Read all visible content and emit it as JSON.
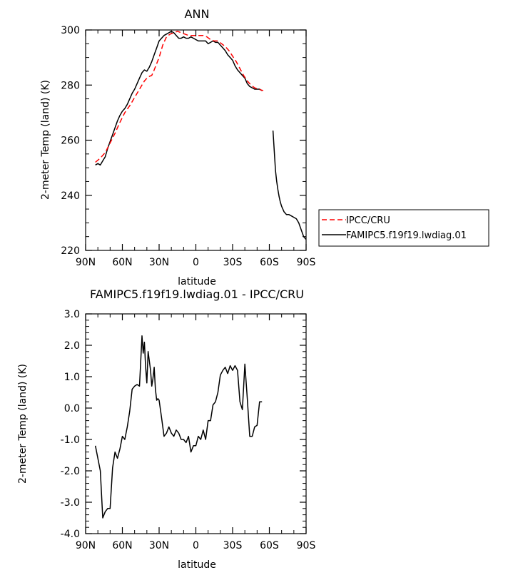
{
  "chart_data": [
    {
      "type": "line",
      "title": "ANN",
      "xlabel": "latitude",
      "ylabel": "2-meter Temp (land) (K)",
      "xlim": [
        90,
        -90
      ],
      "ylim": [
        220,
        300
      ],
      "x_ticks": [
        90,
        60,
        30,
        0,
        -30,
        -60,
        -90
      ],
      "x_tick_labels": [
        "90N",
        "60N",
        "30N",
        "0",
        "30S",
        "60S",
        "90S"
      ],
      "y_ticks": [
        220,
        240,
        260,
        280,
        300
      ],
      "y_tick_labels": [
        "220",
        "240",
        "260",
        "280",
        "300"
      ],
      "legend_position": "right",
      "series": [
        {
          "name": "IPCC/CRU",
          "color": "#ff0000",
          "dash": "dashed",
          "x": [
            82,
            78,
            74,
            70,
            66,
            62,
            58,
            54,
            50,
            46,
            42,
            39,
            36,
            34,
            30,
            27,
            24,
            21,
            18,
            15,
            12,
            9,
            6,
            3,
            0,
            -3,
            -6,
            -9,
            -12,
            -15,
            -18,
            -21,
            -24,
            -27,
            -30,
            -33,
            -36,
            -39,
            -42,
            -45,
            -48,
            -51,
            -55
          ],
          "y": [
            252,
            253.5,
            255.5,
            259,
            262.5,
            266.5,
            270,
            272.5,
            275.5,
            278.5,
            281.5,
            283,
            283.5,
            285.5,
            290,
            294.5,
            297.5,
            298.5,
            299,
            299.5,
            299,
            298.5,
            298,
            298,
            298,
            298,
            298,
            297.5,
            296.5,
            296,
            296,
            295,
            294,
            292.5,
            290.5,
            288.5,
            286,
            283.5,
            281.5,
            280,
            279,
            278.5,
            278
          ]
        },
        {
          "name": "FAMIPC5.f19f19.lwdiag.01",
          "color": "#000000",
          "dash": "solid",
          "x": [
            82,
            80,
            78,
            76,
            74,
            72,
            70,
            68,
            66,
            64,
            62,
            60,
            58,
            56,
            54,
            52,
            50,
            48,
            46,
            44,
            42,
            40,
            38,
            36,
            34,
            32,
            30,
            28,
            26,
            24,
            22,
            20,
            18,
            16,
            14,
            12,
            10,
            8,
            6,
            4,
            2,
            0,
            -2,
            -4,
            -6,
            -8,
            -10,
            -12,
            -14,
            -16,
            -18,
            -20,
            -22,
            -24,
            -26,
            -28,
            -30,
            -32,
            -34,
            -36,
            -38,
            -40,
            -42,
            -44,
            -46,
            -48,
            -50,
            -52,
            -54
          ],
          "y": [
            251,
            251.5,
            251,
            252.5,
            254,
            257,
            259.5,
            262,
            264.5,
            267,
            269,
            270.5,
            271.5,
            273,
            275,
            277,
            278.5,
            280.5,
            282.5,
            284.5,
            285.5,
            285,
            286.5,
            288.5,
            291,
            293.5,
            296,
            297,
            298,
            298.5,
            299,
            299.5,
            299,
            298,
            297,
            297,
            297.5,
            297,
            297,
            297.5,
            297,
            296.5,
            296,
            296,
            296,
            296,
            295,
            295.5,
            296,
            295.5,
            295.5,
            294.5,
            293.5,
            292.5,
            291,
            290,
            289,
            287,
            285.5,
            284.5,
            283.5,
            282.5,
            280.5,
            279.5,
            279,
            278.5,
            278.5,
            278.5,
            278
          ]
        },
        {
          "name": "",
          "color": "#000000",
          "dash": "solid",
          "x": [
            -63,
            -64,
            -65,
            -66,
            -67,
            -68,
            -69,
            -70,
            -72,
            -74,
            -76,
            -78,
            -80,
            -82,
            -84,
            -86,
            -88,
            -90
          ],
          "y": [
            263.5,
            256,
            249,
            245,
            242,
            239.5,
            237.5,
            236,
            234,
            233,
            233,
            232.5,
            232,
            231.5,
            230,
            227.5,
            225,
            224
          ]
        }
      ]
    },
    {
      "type": "line",
      "title": "FAMIPC5.f19f19.lwdiag.01 - IPCC/CRU",
      "xlabel": "latitude",
      "ylabel": "2-meter Temp (land) (K)",
      "xlim": [
        90,
        -90
      ],
      "ylim": [
        -4.0,
        3.0
      ],
      "x_ticks": [
        90,
        60,
        30,
        0,
        -30,
        -60,
        -90
      ],
      "x_tick_labels": [
        "90N",
        "60N",
        "30N",
        "0",
        "30S",
        "60S",
        "90S"
      ],
      "y_ticks": [
        -4.0,
        -3.0,
        -2.0,
        -1.0,
        0.0,
        1.0,
        2.0,
        3.0
      ],
      "y_tick_labels": [
        "-4.0",
        "-3.0",
        "-2.0",
        "-1.0",
        "0.0",
        "1.0",
        "2.0",
        "3.0"
      ],
      "series": [
        {
          "color": "#000000",
          "dash": "solid",
          "x": [
            82,
            78,
            76,
            74,
            72,
            70,
            68,
            66,
            64,
            62,
            60,
            58,
            56,
            54,
            52,
            50,
            48,
            46,
            44,
            43,
            42,
            41,
            40,
            39,
            38,
            37,
            36,
            35,
            34,
            33,
            32,
            31,
            30,
            28,
            26,
            24,
            22,
            20,
            18,
            16,
            14,
            12,
            10,
            8,
            6,
            4,
            2,
            0,
            -2,
            -4,
            -6,
            -8,
            -10,
            -12,
            -14,
            -16,
            -18,
            -20,
            -22,
            -24,
            -26,
            -28,
            -30,
            -32,
            -34,
            -36,
            -38,
            -40,
            -42,
            -44,
            -46,
            -48,
            -50,
            -52,
            -54
          ],
          "y": [
            -1.2,
            -2.0,
            -3.5,
            -3.3,
            -3.2,
            -3.2,
            -1.9,
            -1.4,
            -1.6,
            -1.3,
            -0.9,
            -1.0,
            -0.6,
            -0.1,
            0.6,
            0.7,
            0.75,
            0.7,
            2.3,
            1.75,
            2.1,
            1.3,
            0.8,
            1.8,
            1.5,
            1.2,
            0.7,
            0.95,
            1.3,
            0.6,
            0.25,
            0.3,
            0.25,
            -0.3,
            -0.9,
            -0.8,
            -0.6,
            -0.8,
            -0.9,
            -0.7,
            -0.8,
            -1.0,
            -1.0,
            -1.1,
            -0.9,
            -1.4,
            -1.2,
            -1.2,
            -0.9,
            -1.0,
            -0.7,
            -1.0,
            -0.4,
            -0.4,
            0.1,
            0.2,
            0.5,
            1.05,
            1.2,
            1.3,
            1.1,
            1.35,
            1.2,
            1.35,
            1.2,
            0.2,
            -0.05,
            1.4,
            0.3,
            -0.9,
            -0.9,
            -0.6,
            -0.55,
            0.2,
            0.2
          ]
        }
      ]
    }
  ]
}
